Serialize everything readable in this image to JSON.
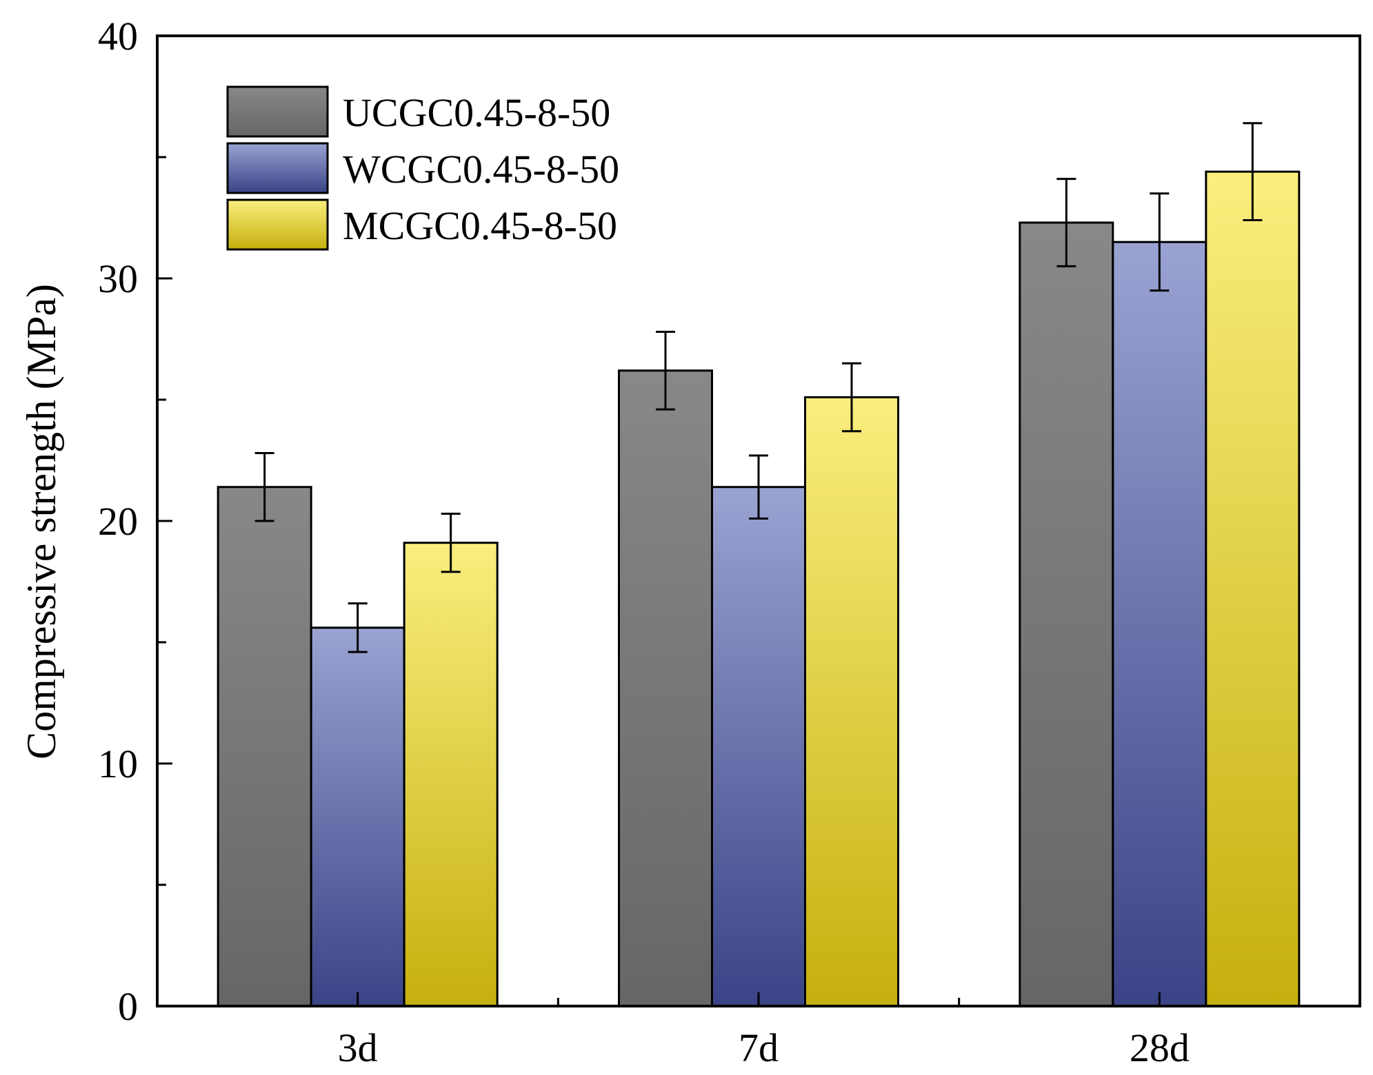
{
  "chart_data": {
    "type": "bar",
    "title": "",
    "xlabel": "",
    "ylabel": "Compressive strength (MPa)",
    "ylim": [
      0,
      40
    ],
    "yticks": [
      0,
      10,
      20,
      30,
      40
    ],
    "categories": [
      "3d",
      "7d",
      "28d"
    ],
    "series": [
      {
        "name": "UCGC0.45-8-50",
        "values": [
          21.4,
          26.2,
          32.3
        ],
        "errors": [
          1.4,
          1.6,
          1.8
        ],
        "color_top": "#888888",
        "color_bottom": "#666666"
      },
      {
        "name": "WCGC0.45-8-50",
        "values": [
          15.6,
          21.4,
          31.5
        ],
        "errors": [
          1.0,
          1.3,
          2.0
        ],
        "color_top": "#9aa3d2",
        "color_bottom": "#3a4386"
      },
      {
        "name": "MCGC0.45-8-50",
        "values": [
          19.1,
          25.1,
          34.4
        ],
        "errors": [
          1.2,
          1.4,
          2.0
        ],
        "color_top": "#faee7e",
        "color_bottom": "#c6b00e"
      }
    ],
    "legend_position": "top-left"
  }
}
